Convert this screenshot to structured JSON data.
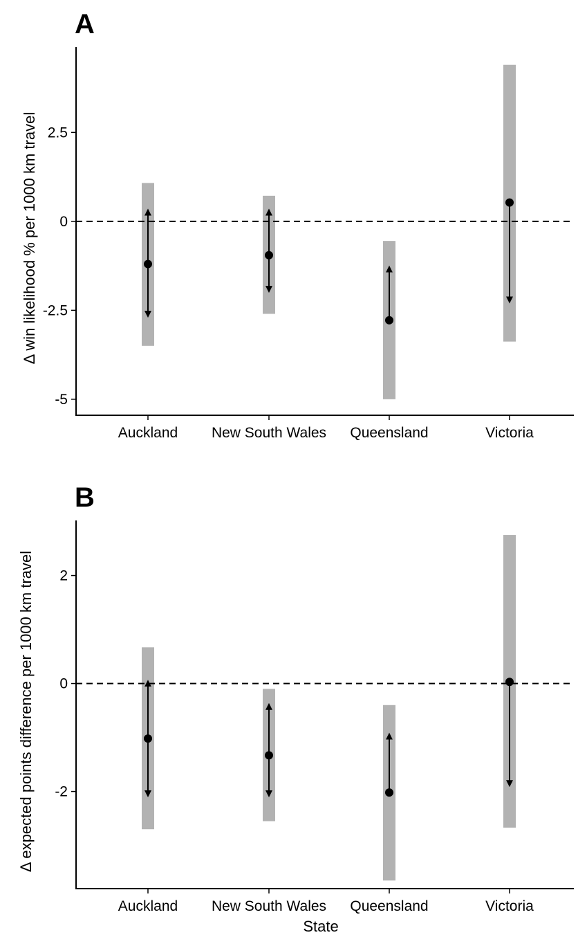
{
  "chart_data": [
    {
      "type": "range",
      "panel": "A",
      "ylabel": "Δ win likelihood % per 1000 km travel",
      "xlabel": "",
      "categories": [
        "Auckland",
        "New South Wales",
        "Queensland",
        "Victoria"
      ],
      "y_ticks": [
        2.5,
        0,
        -2.5,
        -5
      ],
      "y_tick_labels": [
        "2.5",
        "0",
        "-2.5",
        "-5"
      ],
      "ylim": [
        -5.45,
        4.9
      ],
      "reference_line": 0,
      "ranges": [
        {
          "category": "Auckland",
          "low": -3.5,
          "high": 1.08
        },
        {
          "category": "New South Wales",
          "low": -2.6,
          "high": 0.72
        },
        {
          "category": "Queensland",
          "low": -5.0,
          "high": -0.55
        },
        {
          "category": "Victoria",
          "low": -3.38,
          "high": 4.4
        }
      ],
      "points": [
        {
          "category": "Auckland",
          "value": -1.2,
          "arrow_up": 0.3,
          "arrow_down": -2.65
        },
        {
          "category": "New South Wales",
          "value": -0.95,
          "arrow_up": 0.3,
          "arrow_down": -1.95
        },
        {
          "category": "Queensland",
          "value": -2.78,
          "arrow_up": -1.3,
          "arrow_down": null
        },
        {
          "category": "Victoria",
          "value": 0.53,
          "arrow_up": null,
          "arrow_down": -2.25
        }
      ],
      "colors": {
        "range": "#b2b2b2",
        "marker": "#000000"
      }
    },
    {
      "type": "range",
      "panel": "B",
      "ylabel": "Δ expected points difference per 1000 km travel",
      "xlabel": "State",
      "categories": [
        "Auckland",
        "New South Wales",
        "Queensland",
        "Victoria"
      ],
      "y_ticks": [
        2,
        0,
        -2
      ],
      "y_tick_labels": [
        "2",
        "0",
        "-2"
      ],
      "ylim": [
        -3.8,
        3.02
      ],
      "reference_line": 0,
      "ranges": [
        {
          "category": "Auckland",
          "low": -2.7,
          "high": 0.67
        },
        {
          "category": "New South Wales",
          "low": -2.55,
          "high": -0.1
        },
        {
          "category": "Queensland",
          "low": -3.65,
          "high": -0.4
        },
        {
          "category": "Victoria",
          "low": -2.67,
          "high": 2.75
        }
      ],
      "points": [
        {
          "category": "Auckland",
          "value": -1.02,
          "arrow_up": 0.03,
          "arrow_down": -2.07
        },
        {
          "category": "New South Wales",
          "value": -1.33,
          "arrow_up": -0.4,
          "arrow_down": -2.07
        },
        {
          "category": "Queensland",
          "value": -2.02,
          "arrow_up": -0.95,
          "arrow_down": null
        },
        {
          "category": "Victoria",
          "value": 0.03,
          "arrow_up": null,
          "arrow_down": -1.88
        }
      ],
      "colors": {
        "range": "#b2b2b2",
        "marker": "#000000"
      }
    }
  ]
}
